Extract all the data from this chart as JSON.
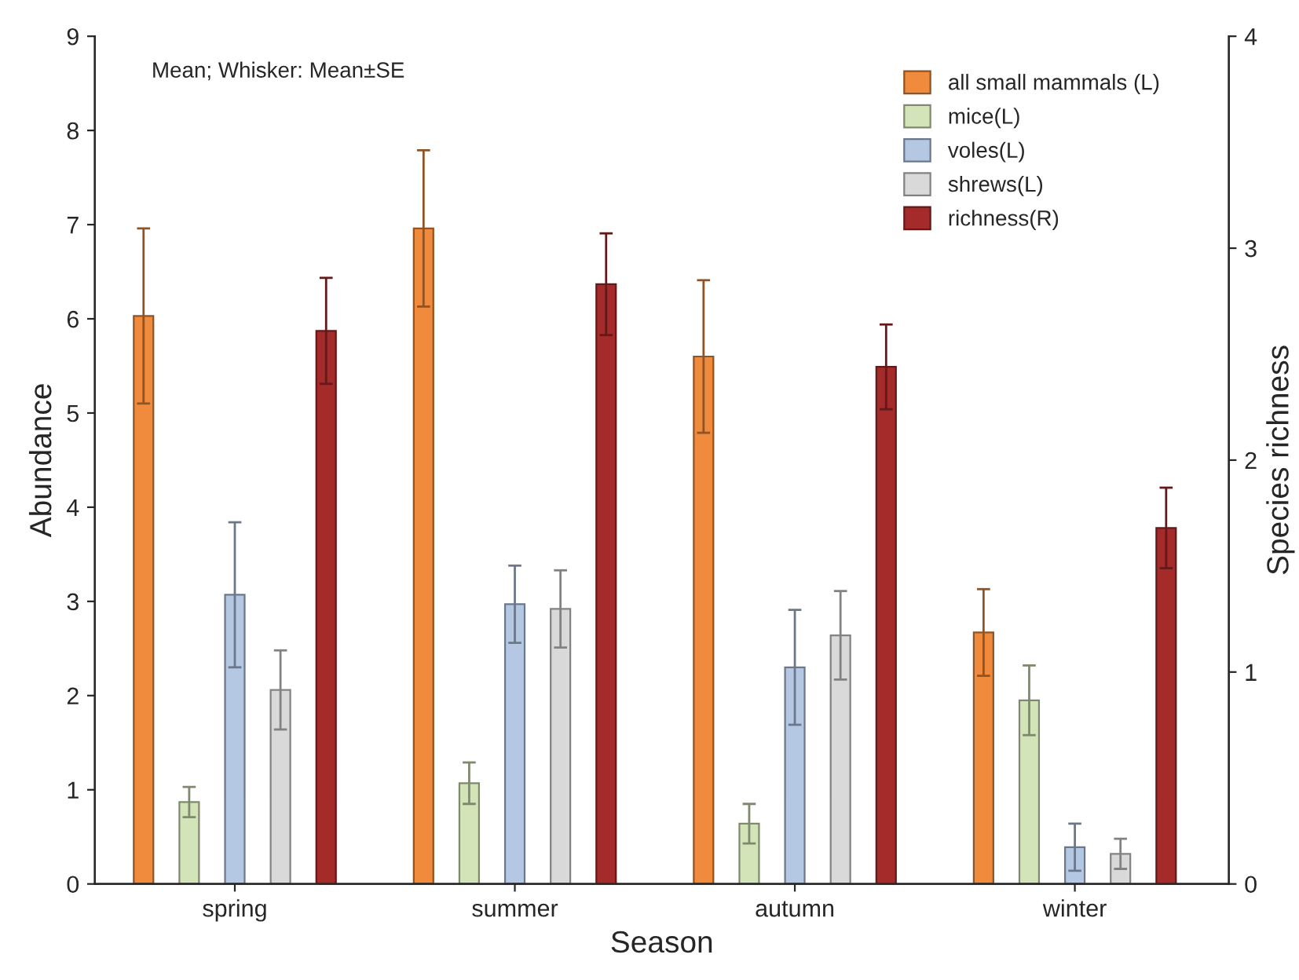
{
  "chart_data": {
    "type": "bar",
    "xlabel": "Season",
    "ylabel": "Abundance",
    "y2label": "Species richness",
    "annotations": [
      "Mean; Whisker: Mean±SE"
    ],
    "categories": [
      "spring",
      "summer",
      "autumn",
      "winter"
    ],
    "ylim": [
      0,
      9
    ],
    "yticks": [
      0,
      1,
      2,
      3,
      4,
      5,
      6,
      7,
      8,
      9
    ],
    "y2lim": [
      0,
      4
    ],
    "y2ticks": [
      0,
      1,
      2,
      3,
      4
    ],
    "grid": false,
    "legend": "top right",
    "series": [
      {
        "name": "all small mammals (L)",
        "color": "#f08a3c",
        "values": [
          6.03,
          6.96,
          5.6,
          2.67
        ],
        "errors": [
          0.93,
          0.83,
          0.81,
          0.46
        ]
      },
      {
        "name": "mice(L)",
        "color": "#d3e4b8",
        "values": [
          0.87,
          1.07,
          0.64,
          1.95
        ],
        "errors": [
          0.16,
          0.22,
          0.21,
          0.37
        ]
      },
      {
        "name": "voles(L)",
        "color": "#b4c8e4",
        "values": [
          3.07,
          2.97,
          2.3,
          0.39
        ],
        "errors": [
          0.77,
          0.41,
          0.61,
          0.25
        ]
      },
      {
        "name": "shrews(L)",
        "color": "#d9d9d9",
        "values": [
          2.06,
          2.92,
          2.64,
          0.32
        ],
        "errors": [
          0.42,
          0.41,
          0.47,
          0.16
        ]
      },
      {
        "name": "richness(R)",
        "color": "#a52a2a",
        "axis": "y2",
        "values": [
          2.61,
          2.83,
          2.44,
          1.68
        ],
        "errors": [
          0.25,
          0.24,
          0.2,
          0.19
        ]
      }
    ]
  }
}
